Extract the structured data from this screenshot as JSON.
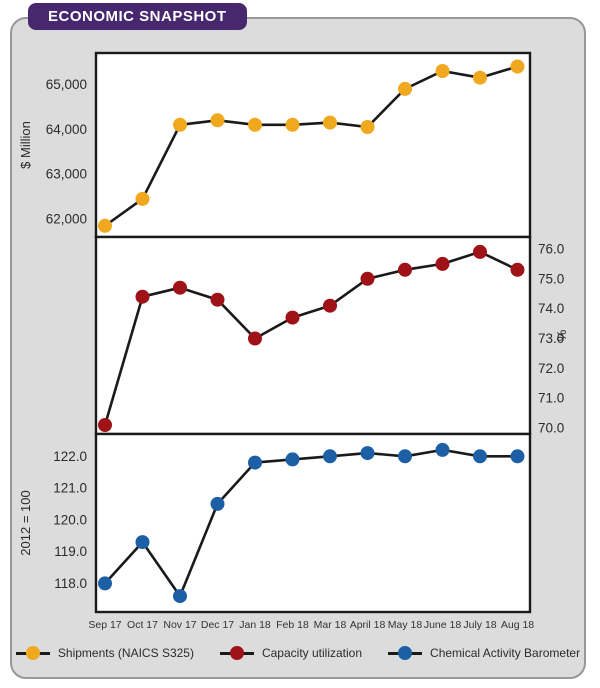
{
  "header": {
    "title": "ECONOMIC SNAPSHOT"
  },
  "colors": {
    "banner": "#47276E",
    "card_bg": "#DCDCDC",
    "card_border": "#98989A",
    "panel_bg": "#FFFFFF",
    "panel_border": "#1A1A1A",
    "line": "#1A1A1A",
    "text": "#2B2B2B",
    "shipments": "#F0A81E",
    "capacity": "#9E1218",
    "barometer": "#1D5FA5"
  },
  "chart_data": [
    {
      "type": "line",
      "key": "shipments",
      "title": "Shipments (NAICS S325)",
      "ylabel": "$ Million",
      "axis_side": "left",
      "color_key": "shipments",
      "categories": [
        "Sep 17",
        "Oct 17",
        "Nov 17",
        "Dec 17",
        "Jan 18",
        "Feb 18",
        "Mar 18",
        "April 18",
        "May 18",
        "June 18",
        "July 18",
        "Aug 18"
      ],
      "values": [
        61850,
        62450,
        64100,
        64200,
        64100,
        64100,
        64150,
        64050,
        64900,
        65300,
        65150,
        65400
      ],
      "ytick_labels": [
        "65,000",
        "64,000",
        "63,000",
        "62,000"
      ],
      "ytick_values": [
        65000,
        64000,
        63000,
        62000
      ],
      "ylim": [
        61600,
        65700
      ],
      "grid": false
    },
    {
      "type": "line",
      "key": "capacity",
      "title": "Capacity utilization",
      "ylabel": "%",
      "axis_side": "right",
      "color_key": "capacity",
      "categories": [
        "Sep 17",
        "Oct 17",
        "Nov 17",
        "Dec 17",
        "Jan 18",
        "Feb 18",
        "Mar 18",
        "April 18",
        "May 18",
        "June 18",
        "July 18",
        "Aug 18"
      ],
      "values": [
        70.1,
        74.4,
        74.7,
        74.3,
        73.0,
        73.7,
        74.1,
        75.0,
        75.3,
        75.5,
        75.9,
        75.3
      ],
      "ytick_labels": [
        "76.0",
        "75.0",
        "74.0",
        "73.0",
        "72.0",
        "71.0",
        "70.0"
      ],
      "ytick_values": [
        76.0,
        75.0,
        74.0,
        73.0,
        72.0,
        71.0,
        70.0
      ],
      "ylim": [
        69.8,
        76.4
      ],
      "grid": false
    },
    {
      "type": "line",
      "key": "barometer",
      "title": "Chemical Activity Barometer",
      "ylabel": "2012 = 100",
      "axis_side": "left",
      "color_key": "barometer",
      "categories": [
        "Sep 17",
        "Oct 17",
        "Nov 17",
        "Dec 17",
        "Jan 18",
        "Feb 18",
        "Mar 18",
        "April 18",
        "May 18",
        "June 18",
        "July 18",
        "Aug 18"
      ],
      "values": [
        118.0,
        119.3,
        117.6,
        120.5,
        121.8,
        121.9,
        122.0,
        122.1,
        122.0,
        122.2,
        122.0,
        122.0
      ],
      "ytick_labels": [
        "122.0",
        "121.0",
        "120.0",
        "119.0",
        "118.0"
      ],
      "ytick_values": [
        122.0,
        121.0,
        120.0,
        119.0,
        118.0
      ],
      "ylim": [
        117.1,
        122.7
      ],
      "grid": false
    }
  ],
  "x_labels": [
    "Sep 17",
    "Oct 17",
    "Nov 17",
    "Dec 17",
    "Jan 18",
    "Feb 18",
    "Mar 18",
    "April 18",
    "May 18",
    "June 18",
    "July 18",
    "Aug 18"
  ],
  "legend": {
    "items": [
      {
        "key": "shipments",
        "label": "Shipments (NAICS S325)",
        "color_key": "shipments"
      },
      {
        "key": "capacity",
        "label": "Capacity utilization",
        "color_key": "capacity"
      },
      {
        "key": "barometer",
        "label": "Chemical Activity Barometer",
        "color_key": "barometer"
      }
    ]
  }
}
